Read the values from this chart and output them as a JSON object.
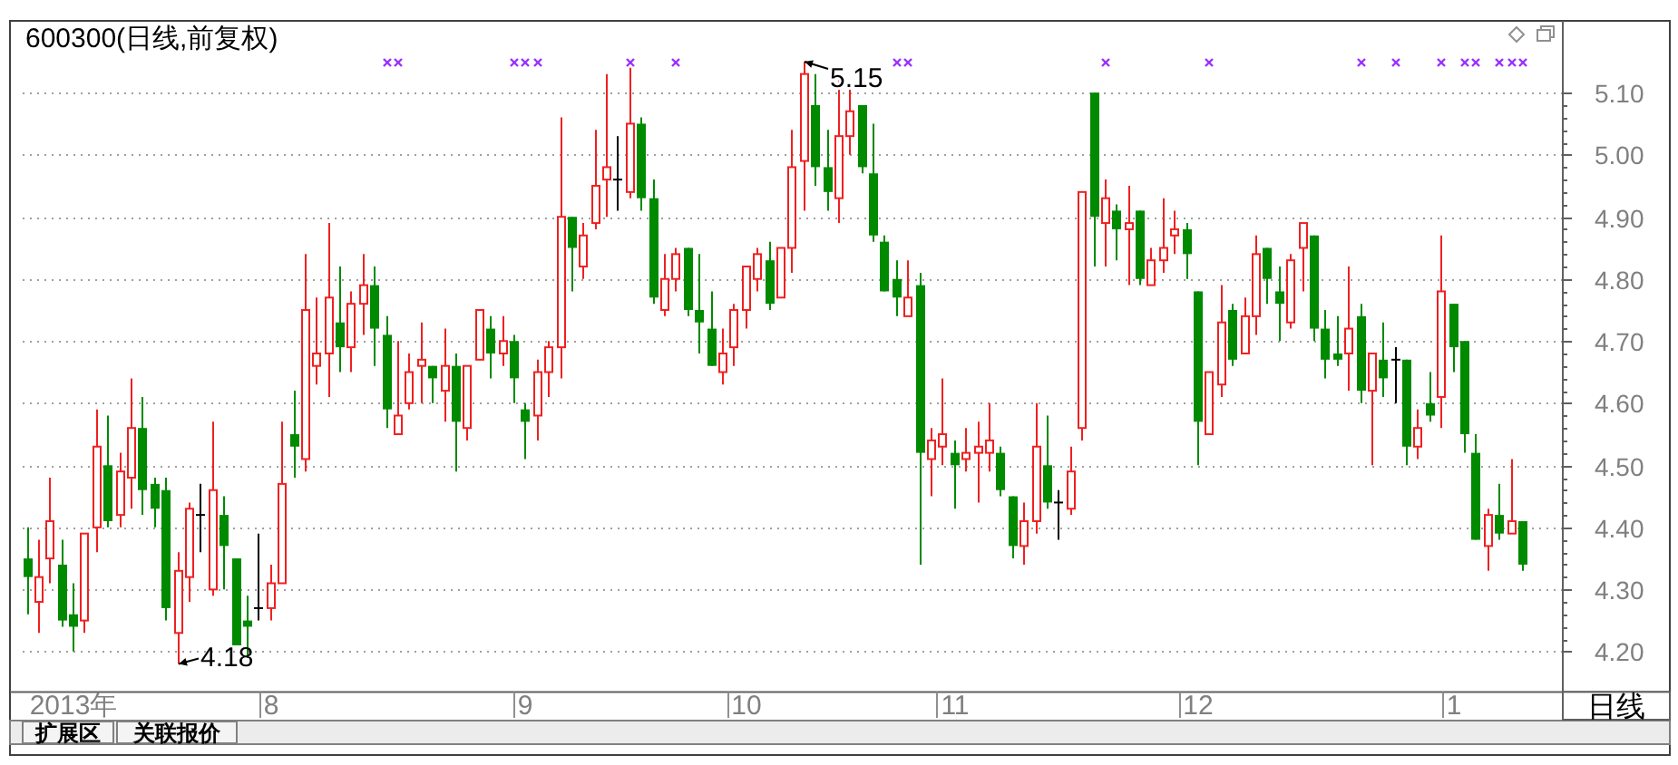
{
  "chart_data": {
    "type": "candlestick",
    "title": "600300(日线,前复权)",
    "categories": [
      null,
      null,
      null,
      null,
      "2013年",
      null,
      null,
      null,
      null,
      null,
      null,
      null,
      null,
      null,
      null,
      null,
      null,
      null,
      null,
      null,
      null,
      "8",
      null,
      null,
      null,
      null,
      null,
      null,
      null,
      null,
      null,
      null,
      null,
      null,
      null,
      null,
      null,
      null,
      null,
      null,
      null,
      null,
      null,
      "9",
      null,
      null,
      null,
      null,
      null,
      null,
      null,
      null,
      null,
      null,
      null,
      null,
      null,
      null,
      null,
      null,
      null,
      null,
      "10",
      null,
      null,
      null,
      null,
      null,
      null,
      null,
      null,
      null,
      null,
      null,
      null,
      null,
      null,
      null,
      null,
      null,
      "11",
      null,
      null,
      null,
      null,
      null,
      null,
      null,
      null,
      null,
      null,
      null,
      null,
      null,
      null,
      null,
      null,
      null,
      null,
      null,
      null,
      "12",
      null,
      null,
      null,
      null,
      null,
      null,
      null,
      null,
      null,
      null,
      null,
      null,
      null,
      null,
      null,
      null,
      null,
      null,
      null,
      null,
      null,
      "1",
      null,
      null,
      null,
      null,
      null,
      null
    ],
    "ohlc": [
      [
        4.35,
        4.4,
        4.26,
        4.32
      ],
      [
        4.28,
        4.38,
        4.23,
        4.32
      ],
      [
        4.35,
        4.48,
        4.31,
        4.41
      ],
      [
        4.34,
        4.38,
        4.24,
        4.25
      ],
      [
        4.26,
        4.31,
        4.2,
        4.24
      ],
      [
        4.25,
        4.39,
        4.23,
        4.39
      ],
      [
        4.4,
        4.59,
        4.36,
        4.53
      ],
      [
        4.5,
        4.58,
        4.4,
        4.41
      ],
      [
        4.42,
        4.52,
        4.4,
        4.49
      ],
      [
        4.48,
        4.64,
        4.43,
        4.56
      ],
      [
        4.56,
        4.61,
        4.42,
        4.46
      ],
      [
        4.47,
        4.48,
        4.4,
        4.43
      ],
      [
        4.46,
        4.48,
        4.25,
        4.27
      ],
      [
        4.23,
        4.36,
        4.18,
        4.33
      ],
      [
        4.32,
        4.44,
        4.28,
        4.43
      ],
      [
        4.42,
        4.47,
        4.36,
        4.42
      ],
      [
        4.3,
        4.57,
        4.29,
        4.46
      ],
      [
        4.42,
        4.45,
        4.3,
        4.37
      ],
      [
        4.35,
        4.35,
        4.21,
        4.21
      ],
      [
        4.25,
        4.29,
        4.19,
        4.24
      ],
      [
        4.27,
        4.39,
        4.25,
        4.27
      ],
      [
        4.27,
        4.34,
        4.25,
        4.31
      ],
      [
        4.31,
        4.57,
        4.31,
        4.47
      ],
      [
        4.55,
        4.62,
        4.48,
        4.53
      ],
      [
        4.51,
        4.84,
        4.49,
        4.75
      ],
      [
        4.66,
        4.77,
        4.63,
        4.68
      ],
      [
        4.68,
        4.89,
        4.61,
        4.77
      ],
      [
        4.73,
        4.82,
        4.65,
        4.69
      ],
      [
        4.69,
        4.78,
        4.65,
        4.76
      ],
      [
        4.76,
        4.84,
        4.71,
        4.79
      ],
      [
        4.79,
        4.82,
        4.66,
        4.72
      ],
      [
        4.71,
        4.74,
        4.56,
        4.59
      ],
      [
        4.55,
        4.7,
        4.55,
        4.58
      ],
      [
        4.6,
        4.68,
        4.59,
        4.65
      ],
      [
        4.66,
        4.73,
        4.6,
        4.67
      ],
      [
        4.66,
        4.66,
        4.6,
        4.64
      ],
      [
        4.62,
        4.72,
        4.57,
        4.66
      ],
      [
        4.66,
        4.68,
        4.49,
        4.57
      ],
      [
        4.56,
        4.66,
        4.54,
        4.66
      ],
      [
        4.67,
        4.75,
        4.67,
        4.75
      ],
      [
        4.72,
        4.74,
        4.64,
        4.68
      ],
      [
        4.68,
        4.74,
        4.66,
        4.7
      ],
      [
        4.7,
        4.71,
        4.6,
        4.64
      ],
      [
        4.59,
        4.6,
        4.51,
        4.57
      ],
      [
        4.58,
        4.67,
        4.54,
        4.65
      ],
      [
        4.65,
        4.7,
        4.61,
        4.69
      ],
      [
        4.69,
        5.06,
        4.64,
        4.9
      ],
      [
        4.9,
        4.9,
        4.78,
        4.85
      ],
      [
        4.82,
        4.89,
        4.8,
        4.87
      ],
      [
        4.89,
        5.04,
        4.88,
        4.95
      ],
      [
        4.96,
        5.13,
        4.9,
        4.98
      ],
      [
        4.96,
        5.03,
        4.91,
        4.96
      ],
      [
        4.94,
        5.14,
        4.93,
        5.05
      ],
      [
        5.05,
        5.06,
        4.91,
        4.93
      ],
      [
        4.93,
        4.96,
        4.76,
        4.77
      ],
      [
        4.75,
        4.84,
        4.74,
        4.8
      ],
      [
        4.8,
        4.85,
        4.78,
        4.84
      ],
      [
        4.85,
        4.85,
        4.74,
        4.75
      ],
      [
        4.75,
        4.84,
        4.68,
        4.73
      ],
      [
        4.72,
        4.78,
        4.66,
        4.66
      ],
      [
        4.65,
        4.72,
        4.63,
        4.68
      ],
      [
        4.69,
        4.76,
        4.66,
        4.75
      ],
      [
        4.75,
        4.82,
        4.72,
        4.82
      ],
      [
        4.8,
        4.85,
        4.78,
        4.84
      ],
      [
        4.83,
        4.86,
        4.75,
        4.76
      ],
      [
        4.77,
        4.85,
        4.77,
        4.85
      ],
      [
        4.85,
        5.04,
        4.81,
        4.98
      ],
      [
        4.99,
        5.15,
        4.91,
        5.13
      ],
      [
        5.08,
        5.13,
        4.95,
        4.98
      ],
      [
        4.98,
        5.04,
        4.91,
        4.94
      ],
      [
        4.93,
        5.13,
        4.89,
        5.03
      ],
      [
        5.03,
        5.11,
        5.0,
        5.07
      ],
      [
        5.08,
        5.08,
        4.97,
        4.98
      ],
      [
        4.97,
        5.05,
        4.86,
        4.87
      ],
      [
        4.86,
        4.87,
        4.78,
        4.78
      ],
      [
        4.8,
        4.83,
        4.74,
        4.77
      ],
      [
        4.74,
        4.83,
        4.74,
        4.77
      ],
      [
        4.79,
        4.81,
        4.34,
        4.52
      ],
      [
        4.51,
        4.56,
        4.45,
        4.54
      ],
      [
        4.53,
        4.64,
        4.5,
        4.55
      ],
      [
        4.52,
        4.54,
        4.43,
        4.5
      ],
      [
        4.51,
        4.56,
        4.49,
        4.52
      ],
      [
        4.52,
        4.57,
        4.44,
        4.53
      ],
      [
        4.52,
        4.6,
        4.49,
        4.54
      ],
      [
        4.52,
        4.53,
        4.45,
        4.46
      ],
      [
        4.45,
        4.45,
        4.35,
        4.37
      ],
      [
        4.37,
        4.44,
        4.34,
        4.41
      ],
      [
        4.41,
        4.6,
        4.39,
        4.53
      ],
      [
        4.5,
        4.58,
        4.43,
        4.44
      ],
      [
        4.44,
        4.46,
        4.38,
        4.44
      ],
      [
        4.43,
        4.53,
        4.42,
        4.49
      ],
      [
        4.56,
        4.94,
        4.54,
        4.94
      ],
      [
        5.1,
        5.1,
        4.82,
        4.9
      ],
      [
        4.89,
        4.96,
        4.82,
        4.93
      ],
      [
        4.91,
        4.92,
        4.83,
        4.88
      ],
      [
        4.88,
        4.95,
        4.79,
        4.89
      ],
      [
        4.91,
        4.91,
        4.79,
        4.8
      ],
      [
        4.79,
        4.85,
        4.79,
        4.83
      ],
      [
        4.83,
        4.93,
        4.81,
        4.85
      ],
      [
        4.87,
        4.91,
        4.84,
        4.88
      ],
      [
        4.88,
        4.89,
        4.8,
        4.84
      ],
      [
        4.78,
        4.78,
        4.5,
        4.57
      ],
      [
        4.55,
        4.65,
        4.55,
        4.65
      ],
      [
        4.63,
        4.79,
        4.61,
        4.73
      ],
      [
        4.75,
        4.76,
        4.66,
        4.67
      ],
      [
        4.68,
        4.77,
        4.68,
        4.74
      ],
      [
        4.74,
        4.87,
        4.71,
        4.84
      ],
      [
        4.85,
        4.85,
        4.76,
        4.8
      ],
      [
        4.78,
        4.82,
        4.7,
        4.76
      ],
      [
        4.73,
        4.84,
        4.72,
        4.83
      ],
      [
        4.85,
        4.89,
        4.78,
        4.89
      ],
      [
        4.87,
        4.87,
        4.7,
        4.72
      ],
      [
        4.72,
        4.75,
        4.64,
        4.67
      ],
      [
        4.68,
        4.74,
        4.66,
        4.67
      ],
      [
        4.68,
        4.82,
        4.62,
        4.72
      ],
      [
        4.74,
        4.76,
        4.6,
        4.62
      ],
      [
        4.62,
        4.68,
        4.5,
        4.68
      ],
      [
        4.67,
        4.73,
        4.61,
        4.64
      ],
      [
        4.67,
        4.69,
        4.6,
        4.67
      ],
      [
        4.67,
        4.67,
        4.5,
        4.53
      ],
      [
        4.53,
        4.59,
        4.51,
        4.56
      ],
      [
        4.6,
        4.65,
        4.57,
        4.58
      ],
      [
        4.61,
        4.87,
        4.56,
        4.78
      ],
      [
        4.76,
        4.76,
        4.65,
        4.69
      ],
      [
        4.7,
        4.7,
        4.52,
        4.55
      ],
      [
        4.52,
        4.55,
        4.38,
        4.38
      ],
      [
        4.37,
        4.43,
        4.33,
        4.42
      ],
      [
        4.42,
        4.47,
        4.38,
        4.39
      ],
      [
        4.39,
        4.51,
        4.39,
        4.41
      ],
      [
        4.41,
        4.41,
        4.33,
        4.34
      ]
    ],
    "ylim": [
      4.135,
      5.215
    ],
    "yticks": [
      {
        "value": 4.2,
        "label": "4.20"
      },
      {
        "value": 4.3,
        "label": "4.30"
      },
      {
        "value": 4.4,
        "label": "4.40"
      },
      {
        "value": 4.5,
        "label": "4.50"
      },
      {
        "value": 4.6,
        "label": "4.60"
      },
      {
        "value": 4.7,
        "label": "4.70"
      },
      {
        "value": 4.8,
        "label": "4.80"
      },
      {
        "value": 4.9,
        "label": "4.90"
      },
      {
        "value": 5.0,
        "label": "5.00"
      },
      {
        "value": 5.1,
        "label": "5.10"
      }
    ],
    "grid": "y",
    "annotations": [
      "4.18",
      "5.15",
      "扩展区",
      "关联报价",
      "日线"
    ]
  }
}
